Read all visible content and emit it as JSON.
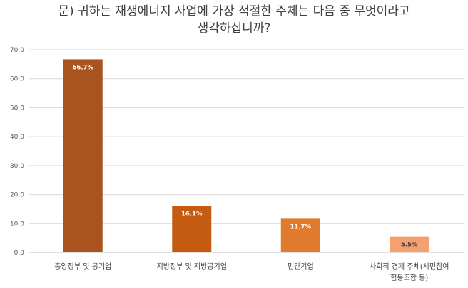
{
  "chart_data": {
    "type": "bar",
    "title_lines": [
      "문) 귀하는 재생에너지 사업에 가장 적절한 주체는 다음 중 무엇이라고",
      "생각하십니까?"
    ],
    "categories": [
      "중앙정부 및 공기업",
      "지방정부 및 지방공기업",
      "민간기업",
      "사회적 경제 주체(시민참여 협동조합 등)"
    ],
    "category_lines": [
      [
        "중앙정부 및 공기업"
      ],
      [
        "지방정부 및 지방공기업"
      ],
      [
        "민간기업"
      ],
      [
        "사회적 경제 주체(시민참여",
        "협동조합 등)"
      ]
    ],
    "values": [
      66.7,
      16.1,
      11.7,
      5.5
    ],
    "data_labels": [
      "66.7%",
      "16.1%",
      "11.7%",
      "5.5%"
    ],
    "bar_colors": [
      "#a9531f",
      "#c55a11",
      "#e07a2e",
      "#f4a070"
    ],
    "label_colors": [
      "#ffffff",
      "#ffffff",
      "#ffffff",
      "#404040"
    ],
    "yticks": [
      "0.0",
      "10.0",
      "20.0",
      "30.0",
      "40.0",
      "50.0",
      "60.0",
      "70.0"
    ],
    "ylim": [
      0,
      70
    ],
    "grid": true,
    "legend": "none"
  }
}
